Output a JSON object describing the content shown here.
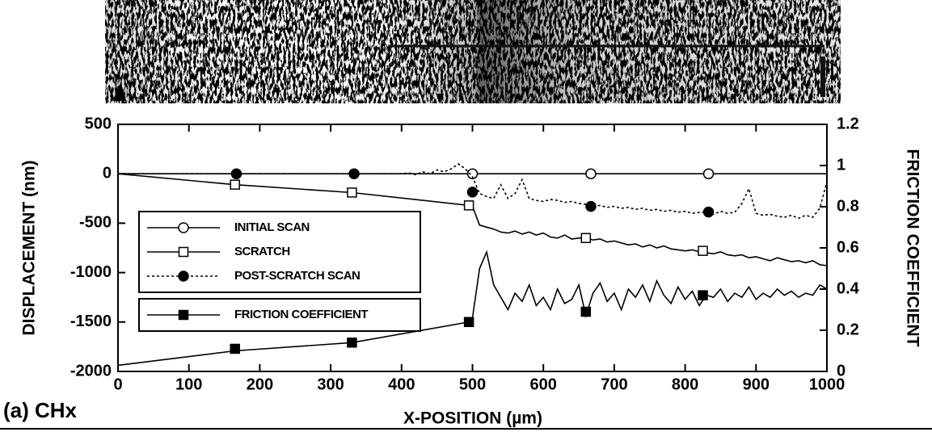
{
  "chart_data": {
    "type": "line",
    "caption": "(a)  CHx",
    "x_label": "X-POSITION (µm)",
    "y_label": "DISPLACEMENT (nm)",
    "y2_label": "FRICTION COEFFICIENT",
    "xlim": [
      0,
      1000
    ],
    "xticks": [
      0,
      100,
      200,
      300,
      400,
      500,
      600,
      700,
      800,
      900,
      1000
    ],
    "ylim": [
      -2000,
      500
    ],
    "yticks": [
      -2000,
      -1500,
      -1000,
      -500,
      0,
      500
    ],
    "y2lim": [
      0,
      1.2
    ],
    "y2ticks": [
      0,
      0.2,
      0.4,
      0.6,
      0.8,
      1,
      1.2
    ],
    "series": [
      {
        "name": "INITIAL SCAN",
        "color": "#000000",
        "marker": "open-circle",
        "dashed": false,
        "axis": "y",
        "x": [
          0,
          1000
        ],
        "values": [
          0,
          0
        ],
        "markers": {
          "x": [
            500,
            667,
            833
          ],
          "values": [
            0,
            0,
            0
          ]
        }
      },
      {
        "name": "SCRATCH",
        "color": "#000000",
        "marker": "open-square",
        "dashed": false,
        "axis": "y",
        "x": [
          0,
          165,
          330,
          495,
          500,
          510,
          520,
          530,
          540,
          550,
          560,
          570,
          580,
          590,
          600,
          610,
          620,
          630,
          640,
          650,
          660,
          670,
          680,
          690,
          700,
          710,
          720,
          730,
          740,
          750,
          760,
          770,
          780,
          790,
          800,
          810,
          820,
          830,
          840,
          850,
          860,
          870,
          880,
          890,
          900,
          910,
          920,
          930,
          940,
          950,
          960,
          970,
          980,
          990,
          1000
        ],
        "values": [
          0,
          -110,
          -190,
          -320,
          -330,
          -520,
          -540,
          -560,
          -590,
          -600,
          -580,
          -610,
          -590,
          -620,
          -600,
          -640,
          -650,
          -620,
          -660,
          -650,
          -650,
          -670,
          -660,
          -690,
          -680,
          -700,
          -720,
          -710,
          -740,
          -720,
          -750,
          -730,
          -760,
          -770,
          -780,
          -770,
          -790,
          -800,
          -810,
          -790,
          -820,
          -830,
          -820,
          -850,
          -840,
          -860,
          -880,
          -850,
          -870,
          -890,
          -880,
          -900,
          -880,
          -920,
          -930
        ],
        "markers": {
          "x": [
            165,
            330,
            495,
            660,
            825
          ],
          "values": [
            -110,
            -190,
            -320,
            -650,
            -780
          ]
        }
      },
      {
        "name": "POST-SCRATCH SCAN",
        "color": "#000000",
        "marker": "filled-circle",
        "dashed": true,
        "axis": "y",
        "x": [
          0,
          167,
          333,
          400,
          410,
          420,
          430,
          440,
          450,
          460,
          470,
          480,
          490,
          500,
          510,
          520,
          530,
          540,
          550,
          560,
          570,
          580,
          590,
          600,
          610,
          620,
          630,
          640,
          650,
          660,
          670,
          680,
          690,
          700,
          710,
          720,
          730,
          740,
          750,
          760,
          770,
          780,
          790,
          800,
          810,
          820,
          830,
          840,
          850,
          860,
          870,
          880,
          890,
          900,
          910,
          920,
          930,
          940,
          950,
          960,
          970,
          980,
          990,
          1000
        ],
        "values": [
          0,
          0,
          0,
          0,
          10,
          -10,
          20,
          0,
          40,
          20,
          50,
          100,
          50,
          -30,
          -200,
          -230,
          -250,
          -110,
          -250,
          -200,
          -60,
          -250,
          -270,
          -280,
          -260,
          -270,
          -290,
          -280,
          -300,
          -310,
          -330,
          -320,
          -340,
          -330,
          -350,
          -340,
          -360,
          -350,
          -370,
          -360,
          -380,
          -370,
          -390,
          -380,
          -400,
          -390,
          -390,
          -410,
          -380,
          -400,
          -390,
          -300,
          -150,
          -400,
          -420,
          -410,
          -430,
          -440,
          -420,
          -450,
          -420,
          -440,
          -350,
          -80
        ],
        "markers": {
          "x": [
            167,
            333,
            500,
            667,
            833
          ],
          "values": [
            0,
            0,
            -185,
            -330,
            -387
          ]
        }
      },
      {
        "name": "FRICTION COEFFICIENT",
        "color": "#000000",
        "marker": "filled-square",
        "dashed": false,
        "axis": "y2",
        "x": [
          0,
          165,
          330,
          495,
          500,
          510,
          520,
          530,
          540,
          550,
          560,
          570,
          580,
          590,
          600,
          610,
          620,
          630,
          640,
          650,
          660,
          670,
          680,
          690,
          700,
          710,
          720,
          730,
          740,
          750,
          760,
          770,
          780,
          790,
          800,
          810,
          820,
          830,
          840,
          850,
          860,
          870,
          880,
          890,
          900,
          910,
          920,
          930,
          940,
          950,
          960,
          970,
          980,
          990,
          1000
        ],
        "values": [
          0.03,
          0.1,
          0.14,
          0.24,
          0.26,
          0.5,
          0.58,
          0.42,
          0.36,
          0.3,
          0.38,
          0.34,
          0.42,
          0.32,
          0.36,
          0.3,
          0.4,
          0.33,
          0.35,
          0.42,
          0.27,
          0.38,
          0.43,
          0.34,
          0.38,
          0.3,
          0.4,
          0.36,
          0.42,
          0.34,
          0.44,
          0.37,
          0.33,
          0.41,
          0.35,
          0.39,
          0.32,
          0.37,
          0.36,
          0.4,
          0.34,
          0.38,
          0.36,
          0.41,
          0.35,
          0.38,
          0.36,
          0.4,
          0.37,
          0.39,
          0.36,
          0.38,
          0.37,
          0.42,
          0.4
        ],
        "markers": {
          "x": [
            165,
            330,
            495,
            660,
            825
          ],
          "values": [
            0.11,
            0.14,
            0.24,
            0.29,
            0.37
          ]
        }
      }
    ]
  }
}
